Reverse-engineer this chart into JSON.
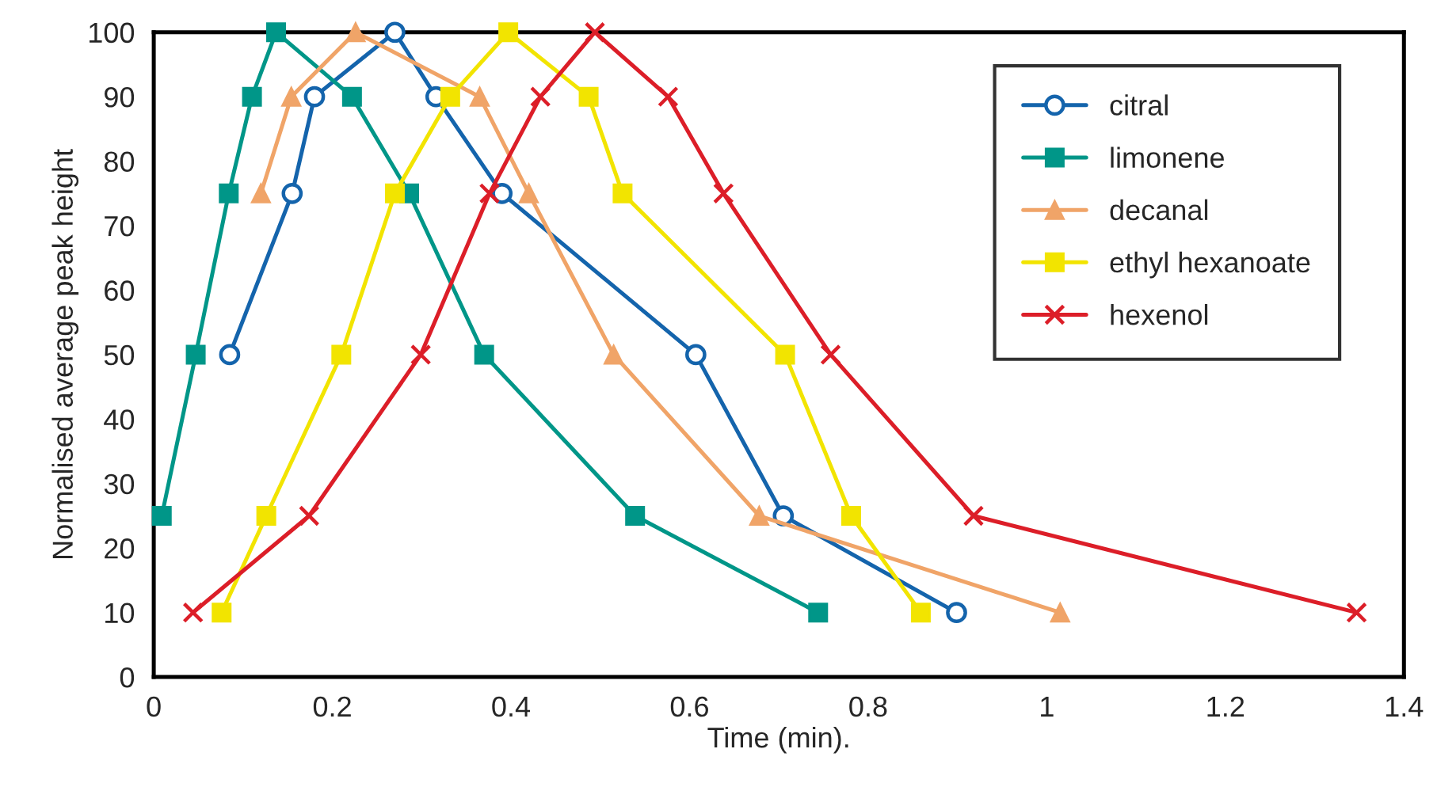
{
  "chart_data": {
    "type": "line",
    "xlabel": "Time (min).",
    "ylabel": "Normalised average peak height",
    "xlim": [
      0,
      1.4
    ],
    "xticks": [
      0,
      0.2,
      0.4,
      0.6,
      0.8,
      1,
      1.2,
      1.4
    ],
    "ylim": [
      0,
      100
    ],
    "yticks": [
      0,
      10,
      20,
      30,
      40,
      50,
      60,
      70,
      80,
      90,
      100
    ],
    "grid": false,
    "legend": "top right",
    "series": [
      {
        "name": "citral",
        "color": "#1464ac",
        "marker": "circle",
        "x": [
          0.085,
          0.155,
          0.18,
          0.27,
          0.316,
          0.39,
          0.607,
          0.705,
          0.899
        ],
        "values": [
          50,
          75,
          90,
          100,
          90,
          75,
          50,
          25,
          10
        ]
      },
      {
        "name": "limonene",
        "color": "#009688",
        "marker": "square",
        "x": [
          0.009,
          0.047,
          0.084,
          0.11,
          0.137,
          0.222,
          0.286,
          0.37,
          0.539,
          0.744
        ],
        "values": [
          25,
          50,
          75,
          90,
          100,
          90,
          75,
          50,
          25,
          10
        ]
      },
      {
        "name": "decanal",
        "color": "#f0a468",
        "marker": "triangle",
        "x": [
          0.12,
          0.154,
          0.226,
          0.365,
          0.42,
          0.515,
          0.678,
          1.015
        ],
        "values": [
          75,
          90,
          100,
          90,
          75,
          50,
          25,
          10
        ]
      },
      {
        "name": "ethyl hexanoate",
        "color": "#f2e400",
        "marker": "square",
        "x": [
          0.076,
          0.126,
          0.21,
          0.27,
          0.332,
          0.397,
          0.487,
          0.525,
          0.707,
          0.781,
          0.859
        ],
        "values": [
          10,
          25,
          50,
          75,
          90,
          100,
          90,
          75,
          50,
          25,
          10
        ]
      },
      {
        "name": "hexenol",
        "color": "#dc1e28",
        "marker": "cross",
        "x": [
          0.044,
          0.174,
          0.299,
          0.376,
          0.433,
          0.494,
          0.576,
          0.638,
          0.758,
          0.918,
          1.347
        ],
        "values": [
          10,
          25,
          50,
          75,
          90,
          100,
          90,
          75,
          50,
          25,
          10
        ]
      }
    ]
  }
}
